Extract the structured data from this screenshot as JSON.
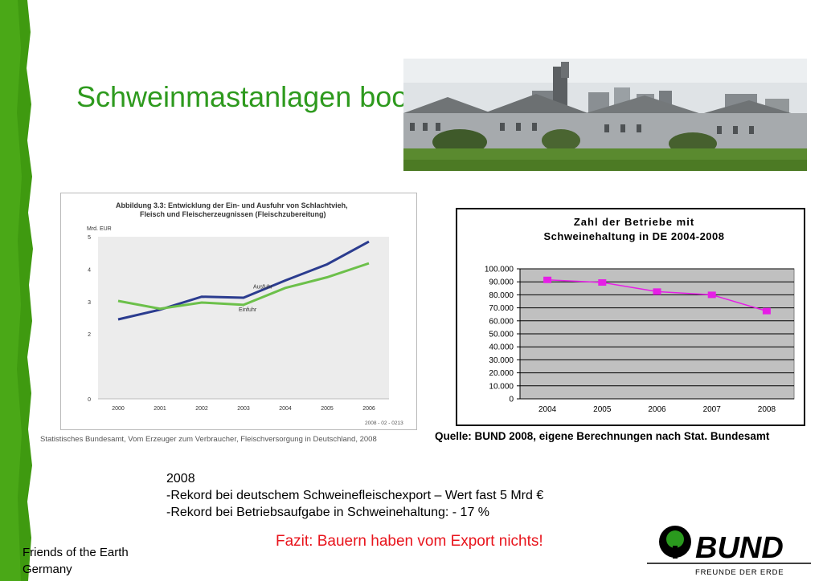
{
  "slide": {
    "title": "Schweinmastanlagen boomen...",
    "facts": [
      "2008",
      "-Rekord bei deutschem Schweinefleischexport – Wert fast 5 Mrd €",
      "-Rekord bei Betriebsaufgabe in Schweinehaltung: - 17 %"
    ],
    "conclusion": "Fazit: Bauern haben vom Export nichts!",
    "org_name": [
      "Friends of the Earth",
      "Germany"
    ]
  },
  "logo": {
    "wordmark": "BUND",
    "tagline": "FREUNDE DER ERDE"
  },
  "colors": {
    "accent_green": "#2e9a1e",
    "conclusion_red": "#e8141c",
    "ausfuhr_line": "#2b3c8f",
    "einfuhr_line": "#6cc04a",
    "betriebe_line": "#e61ee6",
    "plot_bg": "#c0c0c0"
  },
  "chart_data": [
    {
      "type": "line",
      "title": "Abbildung 3.3: Entwicklung der Ein- und Ausfuhr von Schlachtvieh,",
      "subtitle": "Fleisch und Fleischerzeugnissen (Fleischzubereitung)",
      "ylabel": "Mrd. EUR",
      "xlabel": "",
      "categories": [
        "2000",
        "2001",
        "2002",
        "2003",
        "2004",
        "2005",
        "2006"
      ],
      "ylim": [
        0,
        5
      ],
      "yticks": [
        "0",
        "2",
        "3",
        "4",
        "5"
      ],
      "grid": false,
      "series": [
        {
          "name": "Ausfuhr",
          "values": [
            2.45,
            2.75,
            3.15,
            3.12,
            3.65,
            4.15,
            4.85
          ]
        },
        {
          "name": "Einfuhr",
          "values": [
            3.02,
            2.78,
            2.97,
            2.9,
            3.42,
            3.75,
            4.18
          ]
        }
      ],
      "footnote": "2008 - 02 - 0213",
      "source": "Statistisches Bundesamt, Vom Erzeuger zum Verbraucher, Fleischversorgung in Deutschland, 2008"
    },
    {
      "type": "line",
      "title": "Zahl der Betriebe mit",
      "subtitle": "Schweinehaltung in DE 2004-2008",
      "xlabel": "",
      "ylabel": "",
      "categories": [
        "2004",
        "2005",
        "2006",
        "2007",
        "2008"
      ],
      "ylim": [
        0,
        100000
      ],
      "yticks": [
        "0",
        "10.000",
        "20.000",
        "30.000",
        "40.000",
        "50.000",
        "60.000",
        "70.000",
        "80.000",
        "90.000",
        "100.000"
      ],
      "grid": true,
      "series": [
        {
          "values": [
            91500,
            89500,
            82500,
            80000,
            67500
          ]
        }
      ],
      "source": "Quelle: BUND 2008, eigene Berechnungen nach Stat. Bundesamt"
    }
  ]
}
